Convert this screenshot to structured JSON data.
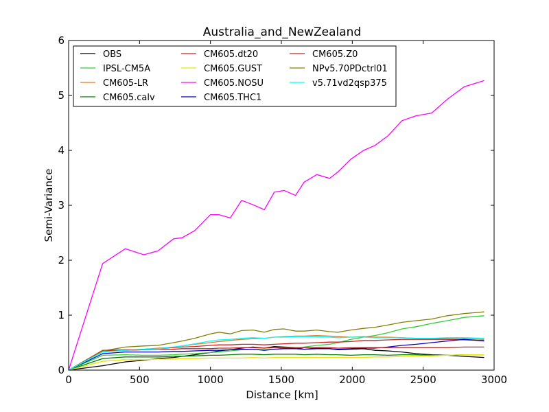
{
  "chart_data": {
    "type": "line",
    "title": "Australia_and_NewZealand",
    "xlabel": "Distance [km]",
    "ylabel": "Semi-Variance",
    "xlim": [
      0,
      3000
    ],
    "ylim": [
      0,
      6
    ],
    "xticks": [
      0,
      500,
      1000,
      1500,
      2000,
      2500,
      3000
    ],
    "yticks": [
      0,
      1,
      2,
      3,
      4,
      5,
      6
    ],
    "grid": false,
    "legend_position": "top-left",
    "x": [
      0,
      240,
      400,
      530,
      630,
      740,
      800,
      890,
      1000,
      1060,
      1140,
      1220,
      1300,
      1380,
      1450,
      1520,
      1600,
      1660,
      1750,
      1840,
      1900,
      1990,
      2080,
      2160,
      2250,
      2350,
      2450,
      2560,
      2670,
      2790,
      2930
    ],
    "series": [
      {
        "name": "OBS",
        "color": "#000000",
        "values": [
          0,
          0.08,
          0.15,
          0.18,
          0.21,
          0.23,
          0.25,
          0.28,
          0.32,
          0.35,
          0.37,
          0.4,
          0.42,
          0.4,
          0.43,
          0.42,
          0.41,
          0.38,
          0.4,
          0.39,
          0.37,
          0.38,
          0.39,
          0.36,
          0.35,
          0.33,
          0.3,
          0.28,
          0.27,
          0.25,
          0.23
        ]
      },
      {
        "name": "IPSL-CM5A",
        "color": "#33cc33",
        "values": [
          0,
          0.27,
          0.28,
          0.27,
          0.27,
          0.28,
          0.29,
          0.3,
          0.32,
          0.33,
          0.35,
          0.37,
          0.38,
          0.37,
          0.38,
          0.4,
          0.4,
          0.42,
          0.45,
          0.47,
          0.5,
          0.56,
          0.6,
          0.63,
          0.68,
          0.75,
          0.79,
          0.85,
          0.9,
          0.96,
          0.99
        ]
      },
      {
        "name": "CM605-LR",
        "color": "#e07820",
        "values": [
          0,
          0.35,
          0.37,
          0.38,
          0.4,
          0.42,
          0.44,
          0.47,
          0.5,
          0.52,
          0.54,
          0.56,
          0.57,
          0.58,
          0.6,
          0.61,
          0.62,
          0.62,
          0.63,
          0.62,
          0.61,
          0.6,
          0.61,
          0.6,
          0.6,
          0.59,
          0.58,
          0.58,
          0.57,
          0.57,
          0.56
        ]
      },
      {
        "name": "CM605.calv",
        "color": "#007f00",
        "values": [
          0,
          0.21,
          0.24,
          0.24,
          0.24,
          0.25,
          0.25,
          0.26,
          0.27,
          0.27,
          0.28,
          0.29,
          0.29,
          0.28,
          0.29,
          0.29,
          0.29,
          0.28,
          0.29,
          0.28,
          0.28,
          0.27,
          0.28,
          0.28,
          0.27,
          0.28,
          0.28,
          0.27,
          0.27,
          0.28,
          0.28
        ]
      },
      {
        "name": "CM605.dt20",
        "color": "#d62020",
        "values": [
          0,
          0.36,
          0.37,
          0.38,
          0.39,
          0.41,
          0.42,
          0.43,
          0.45,
          0.46,
          0.46,
          0.47,
          0.47,
          0.46,
          0.47,
          0.48,
          0.49,
          0.49,
          0.5,
          0.51,
          0.51,
          0.52,
          0.54,
          0.54,
          0.55,
          0.56,
          0.56,
          0.56,
          0.56,
          0.55,
          0.54
        ]
      },
      {
        "name": "CM605.GUST",
        "color": "#e6e600",
        "values": [
          0,
          0.16,
          0.19,
          0.19,
          0.2,
          0.2,
          0.21,
          0.21,
          0.22,
          0.22,
          0.22,
          0.22,
          0.23,
          0.22,
          0.23,
          0.23,
          0.23,
          0.23,
          0.23,
          0.23,
          0.23,
          0.23,
          0.23,
          0.24,
          0.24,
          0.25,
          0.26,
          0.26,
          0.27,
          0.28,
          0.28
        ]
      },
      {
        "name": "CM605.NOSU",
        "color": "#ff00ff",
        "values": [
          0,
          1.94,
          2.21,
          2.1,
          2.17,
          2.39,
          2.41,
          2.54,
          2.83,
          2.83,
          2.77,
          3.09,
          3.01,
          2.92,
          3.24,
          3.27,
          3.18,
          3.42,
          3.56,
          3.49,
          3.61,
          3.84,
          4.0,
          4.09,
          4.26,
          4.54,
          4.63,
          4.68,
          4.93,
          5.16,
          5.27
        ]
      },
      {
        "name": "CM605.THC1",
        "color": "#0000cc",
        "values": [
          0,
          0.3,
          0.33,
          0.33,
          0.33,
          0.34,
          0.34,
          0.35,
          0.36,
          0.36,
          0.37,
          0.38,
          0.38,
          0.36,
          0.38,
          0.39,
          0.39,
          0.38,
          0.39,
          0.39,
          0.38,
          0.39,
          0.4,
          0.4,
          0.42,
          0.45,
          0.47,
          0.5,
          0.53,
          0.56,
          0.53
        ]
      },
      {
        "name": "CM605.Z0",
        "color": "#c02828",
        "values": [
          0,
          0.35,
          0.36,
          0.37,
          0.38,
          0.38,
          0.39,
          0.39,
          0.39,
          0.4,
          0.4,
          0.41,
          0.41,
          0.4,
          0.41,
          0.41,
          0.41,
          0.41,
          0.41,
          0.41,
          0.4,
          0.41,
          0.41,
          0.41,
          0.41,
          0.41,
          0.41,
          0.41,
          0.41,
          0.42,
          0.42
        ]
      },
      {
        "name": "NPv5.70PDctrl01",
        "color": "#808000",
        "values": [
          0,
          0.35,
          0.42,
          0.44,
          0.45,
          0.5,
          0.53,
          0.58,
          0.66,
          0.69,
          0.66,
          0.72,
          0.73,
          0.69,
          0.74,
          0.75,
          0.71,
          0.71,
          0.73,
          0.7,
          0.69,
          0.73,
          0.76,
          0.78,
          0.82,
          0.87,
          0.9,
          0.93,
          0.99,
          1.03,
          1.06
        ]
      },
      {
        "name": "v5.71vd2qsp375",
        "color": "#00ffff",
        "values": [
          0,
          0.33,
          0.36,
          0.38,
          0.39,
          0.42,
          0.44,
          0.48,
          0.53,
          0.55,
          0.56,
          0.58,
          0.59,
          0.58,
          0.6,
          0.6,
          0.61,
          0.61,
          0.61,
          0.6,
          0.59,
          0.6,
          0.6,
          0.59,
          0.59,
          0.59,
          0.58,
          0.58,
          0.59,
          0.59,
          0.58
        ]
      }
    ]
  }
}
